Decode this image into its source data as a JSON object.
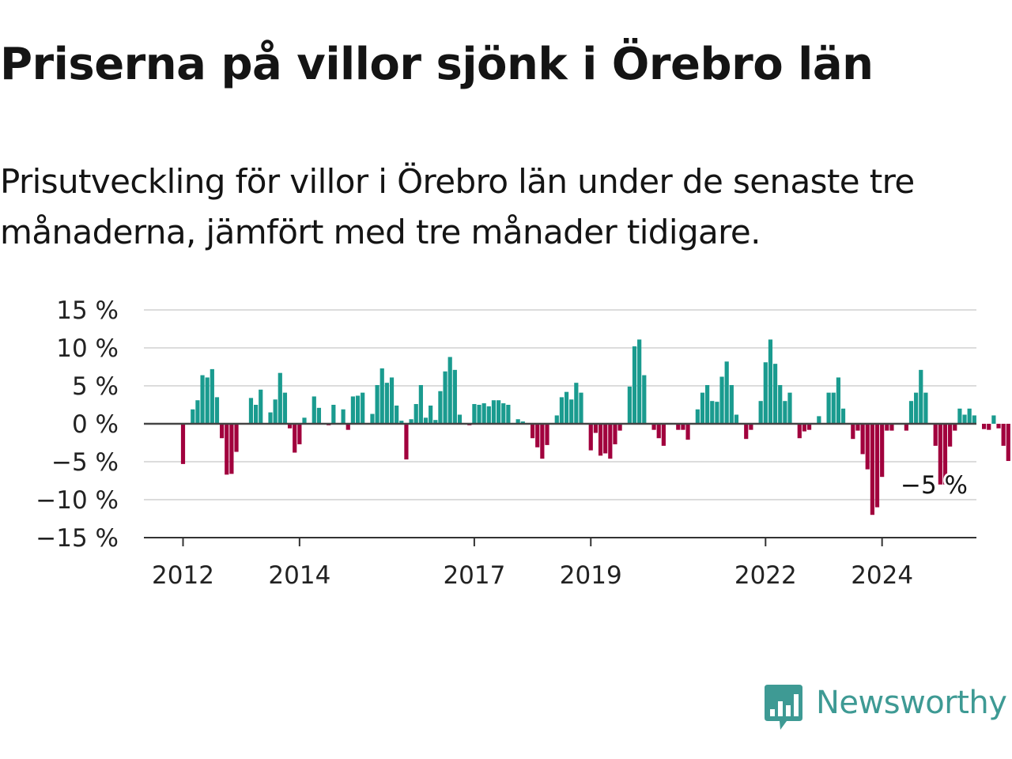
{
  "title": "Priserna på villor sjönk i Örebro län",
  "subtitle": "Prisutveckling för villor i Örebro län under de senaste tre månaderna, jämfört med tre månader tidigare.",
  "brand": {
    "name": "Newsworthy",
    "color": "#3e9a94"
  },
  "colors": {
    "positive": "#1a9b8f",
    "negative": "#a1003d",
    "grid": "#dcdcdc",
    "zero_line": "#444444",
    "text": "#141414"
  },
  "chart_data": {
    "type": "bar",
    "unit": "%",
    "x_start": "2012-01",
    "ylim": [
      -15,
      15
    ],
    "y_ticks": [
      {
        "value": 15,
        "label": "15 %"
      },
      {
        "value": 10,
        "label": "10 %"
      },
      {
        "value": 5,
        "label": "5 %"
      },
      {
        "value": 0,
        "label": "0 %"
      },
      {
        "value": -5,
        "label": "−5 %"
      },
      {
        "value": -10,
        "label": "−10 %"
      },
      {
        "value": -15,
        "label": "−15 %"
      }
    ],
    "x_ticks": [
      {
        "month_index": 0,
        "label": "2012"
      },
      {
        "month_index": 24,
        "label": "2014"
      },
      {
        "month_index": 60,
        "label": "2017"
      },
      {
        "month_index": 84,
        "label": "2019"
      },
      {
        "month_index": 120,
        "label": "2022"
      },
      {
        "month_index": 144,
        "label": "2024"
      }
    ],
    "grid": true,
    "last_value_label": "−5 %",
    "values": [
      -5.3,
      0,
      1.9,
      3.1,
      6.4,
      6.1,
      7.2,
      3.5,
      -1.9,
      -6.7,
      -6.6,
      -3.7,
      0,
      0,
      3.4,
      2.5,
      4.5,
      0,
      1.5,
      3.2,
      6.7,
      4.1,
      -0.6,
      -3.8,
      -2.7,
      0.8,
      0,
      3.6,
      2.1,
      0,
      -0.2,
      2.5,
      0,
      1.9,
      -0.8,
      3.6,
      3.7,
      4.1,
      0,
      1.3,
      5.1,
      7.3,
      5.4,
      6.1,
      2.4,
      0.4,
      -4.7,
      0.6,
      2.6,
      5.1,
      0.8,
      2.4,
      0.5,
      4.3,
      6.9,
      8.8,
      7.1,
      1.2,
      0,
      -0.2,
      2.6,
      2.5,
      2.7,
      2.3,
      3.1,
      3.1,
      2.7,
      2.5,
      0,
      0.6,
      0.3,
      0,
      -1.9,
      -3.1,
      -4.6,
      -2.8,
      0,
      1.1,
      3.5,
      4.2,
      3.2,
      5.4,
      4.1,
      0,
      -3.5,
      -1.2,
      -4.2,
      -3.9,
      -4.6,
      -2.7,
      -0.9,
      0,
      4.9,
      10.2,
      11.1,
      6.4,
      0,
      -0.8,
      -1.9,
      -2.9,
      0,
      0,
      -0.8,
      -0.8,
      -2.1,
      0,
      1.9,
      4.1,
      5.1,
      3.0,
      2.9,
      6.2,
      8.2,
      5.1,
      1.2,
      0,
      -2.0,
      -0.8,
      0,
      3.0,
      8.1,
      11.1,
      7.9,
      5.1,
      3.0,
      4.1,
      0,
      -1.9,
      -1.0,
      -0.8,
      0,
      1.0,
      0,
      4.1,
      4.1,
      6.1,
      2.0,
      0,
      -2.0,
      -0.9,
      -4.0,
      -6.0,
      -12.0,
      -11.0,
      -7.0,
      -0.9,
      -0.9,
      0,
      0,
      -0.9,
      3.0,
      4.1,
      7.1,
      4.1,
      0,
      -2.9,
      -8.0,
      -8.0,
      -3.0,
      -0.9,
      2.0,
      1.2,
      2.0,
      1.1,
      0,
      -0.7,
      -0.8,
      1.1,
      -0.6,
      -2.9,
      -4.9
    ]
  }
}
